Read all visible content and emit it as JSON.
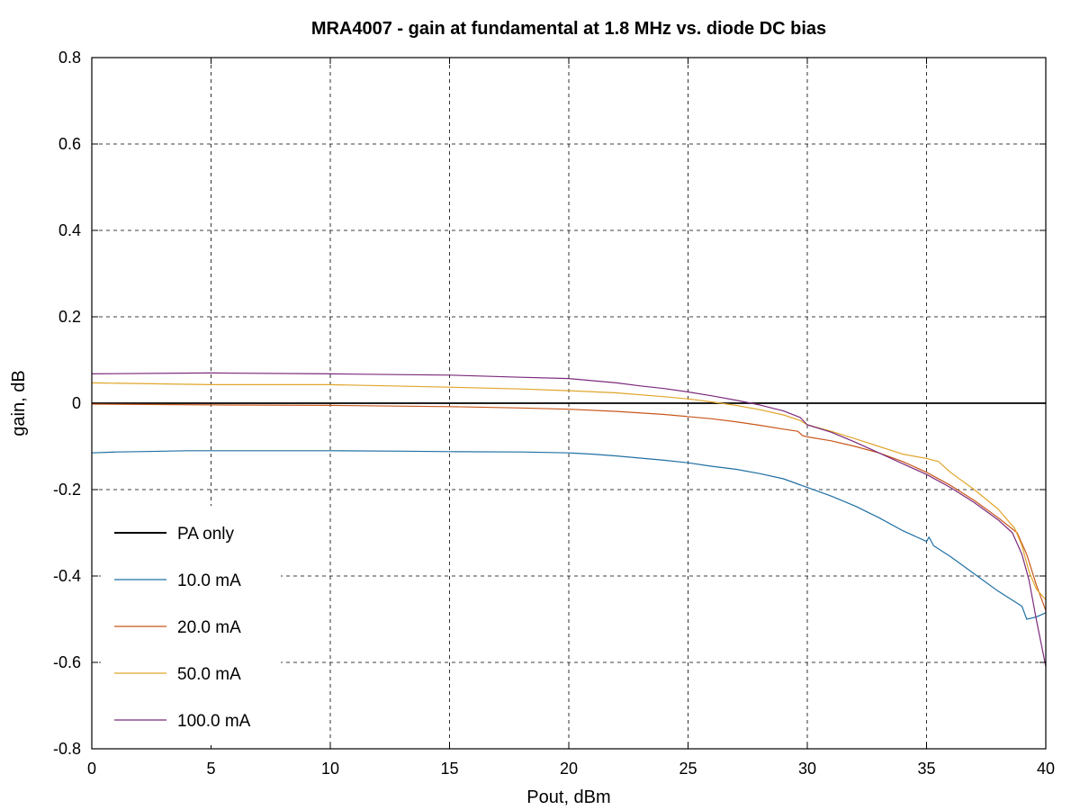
{
  "chart_data": {
    "type": "line",
    "title": "MRA4007 - gain at fundamental at 1.8 MHz vs. diode DC bias",
    "xlabel": "Pout, dBm",
    "ylabel": "gain, dB",
    "xlim": [
      0,
      40
    ],
    "ylim": [
      -0.8,
      0.8
    ],
    "x_ticks": [
      0,
      5,
      10,
      15,
      20,
      25,
      30,
      35,
      40
    ],
    "y_ticks": [
      0.8,
      0.6,
      0.4,
      0.2,
      0,
      -0.2,
      -0.4,
      -0.6,
      -0.8
    ],
    "x_tick_labels": [
      "0",
      "5",
      "10",
      "15",
      "20",
      "25",
      "30",
      "35",
      "40"
    ],
    "y_tick_labels": [
      "0.8",
      "0.6",
      "0.4",
      "0.2",
      "0",
      "-0.2",
      "-0.4",
      "-0.6",
      "-0.8"
    ],
    "grid": true,
    "legend_position": "bottom-left",
    "series": [
      {
        "name": "PA only",
        "color": "#000000",
        "x": [
          0,
          40
        ],
        "y": [
          0,
          0
        ]
      },
      {
        "name": "10.0 mA",
        "color": "#1f6fa3",
        "x": [
          0,
          1,
          2,
          3,
          4,
          5,
          7,
          10,
          13,
          15,
          18,
          20,
          21,
          22,
          23,
          24,
          25,
          26,
          27,
          28,
          29,
          30,
          31,
          32,
          33,
          34,
          35,
          35.1,
          35.3,
          36,
          37,
          38,
          39,
          39.2,
          39.6,
          40
        ],
        "y": [
          -0.115,
          -0.113,
          -0.112,
          -0.111,
          -0.11,
          -0.11,
          -0.11,
          -0.11,
          -0.111,
          -0.112,
          -0.113,
          -0.115,
          -0.118,
          -0.122,
          -0.127,
          -0.132,
          -0.138,
          -0.146,
          -0.153,
          -0.163,
          -0.175,
          -0.195,
          -0.215,
          -0.238,
          -0.265,
          -0.295,
          -0.32,
          -0.31,
          -0.33,
          -0.355,
          -0.395,
          -0.435,
          -0.47,
          -0.5,
          -0.495,
          -0.485
        ]
      },
      {
        "name": "20.0 mA",
        "color": "#c8561a",
        "x": [
          0,
          5,
          10,
          15,
          18,
          20,
          22,
          24,
          26,
          27,
          28,
          29,
          29.6,
          29.8,
          30,
          31,
          32,
          33,
          34,
          35,
          36,
          37,
          38,
          38.8,
          39.2,
          39.6,
          40
        ],
        "y": [
          -0.002,
          -0.004,
          -0.005,
          -0.008,
          -0.011,
          -0.014,
          -0.019,
          -0.026,
          -0.036,
          -0.043,
          -0.051,
          -0.06,
          -0.065,
          -0.075,
          -0.078,
          -0.087,
          -0.1,
          -0.115,
          -0.135,
          -0.16,
          -0.19,
          -0.225,
          -0.265,
          -0.3,
          -0.35,
          -0.42,
          -0.48
        ]
      },
      {
        "name": "50.0 mA",
        "color": "#e0a52a",
        "x": [
          0,
          5,
          10,
          15,
          18,
          20,
          22,
          24,
          25,
          26,
          27,
          28,
          29,
          29.7,
          30,
          31,
          32,
          33,
          34,
          35,
          35.5,
          36,
          37,
          38,
          38.7,
          39,
          39.3,
          39.6,
          40
        ],
        "y": [
          0.047,
          0.043,
          0.043,
          0.037,
          0.033,
          0.029,
          0.024,
          0.015,
          0.01,
          0.003,
          -0.005,
          -0.015,
          -0.027,
          -0.04,
          -0.05,
          -0.065,
          -0.082,
          -0.1,
          -0.118,
          -0.128,
          -0.135,
          -0.16,
          -0.2,
          -0.245,
          -0.29,
          -0.33,
          -0.39,
          -0.43,
          -0.455
        ]
      },
      {
        "name": "100.0 mA",
        "color": "#7b2a7b",
        "x": [
          0,
          5,
          10,
          15,
          18,
          20,
          21,
          22,
          23,
          24,
          25,
          26,
          27,
          28,
          29,
          29.7,
          30,
          31,
          32,
          33,
          34,
          35,
          36,
          37,
          38,
          38.6,
          39,
          39.3,
          39.6,
          40
        ],
        "y": [
          0.068,
          0.07,
          0.068,
          0.065,
          0.06,
          0.057,
          0.052,
          0.047,
          0.04,
          0.034,
          0.026,
          0.017,
          0.007,
          -0.004,
          -0.018,
          -0.033,
          -0.05,
          -0.067,
          -0.09,
          -0.115,
          -0.14,
          -0.165,
          -0.195,
          -0.23,
          -0.27,
          -0.3,
          -0.35,
          -0.41,
          -0.5,
          -0.61
        ]
      }
    ]
  }
}
